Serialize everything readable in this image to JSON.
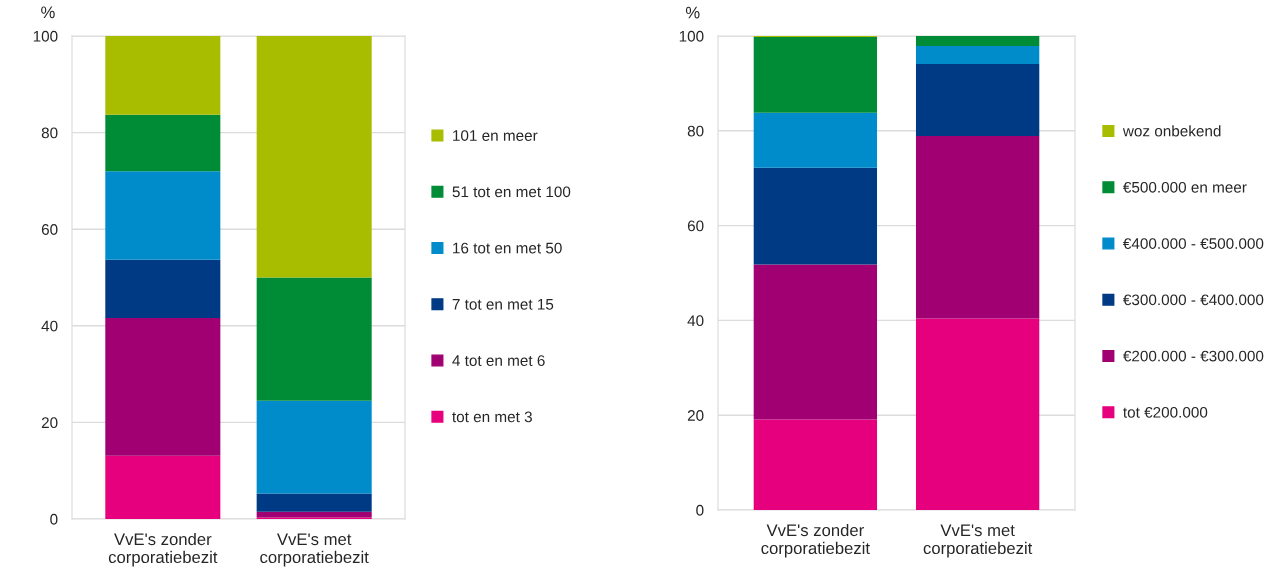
{
  "chart_data": [
    {
      "type": "bar",
      "stacked": true,
      "ylabel": "%",
      "categories": [
        "VvE's zonder corporatiebezit",
        "VvE's met corporatiebezit"
      ],
      "ylim": [
        0,
        100
      ],
      "yticks": [
        0,
        20,
        40,
        60,
        80,
        100
      ],
      "grid": "y",
      "legend": "right",
      "series": [
        {
          "name": "tot en met 3",
          "color": "#e6007e",
          "values": [
            13.1,
            0.3
          ]
        },
        {
          "name": "4 tot en met 6",
          "color": "#a00071",
          "values": [
            28.5,
            1.2
          ]
        },
        {
          "name": "7 tot en met 15",
          "color": "#003a84",
          "values": [
            12.1,
            3.8
          ]
        },
        {
          "name": "16 tot en met 50",
          "color": "#008bcb",
          "values": [
            18.3,
            19.2
          ]
        },
        {
          "name": "51 tot en met 100",
          "color": "#008c36",
          "values": [
            11.7,
            25.5
          ]
        },
        {
          "name": "101 en meer",
          "color": "#a8bc00",
          "values": [
            16.3,
            50.0
          ]
        }
      ]
    },
    {
      "type": "bar",
      "stacked": true,
      "ylabel": "%",
      "categories": [
        "VvE's zonder corporatiebezit",
        "VvE's met corporatiebezit"
      ],
      "ylim": [
        0,
        100
      ],
      "yticks": [
        0,
        20,
        40,
        60,
        80,
        100
      ],
      "grid": "y",
      "legend": "right",
      "series": [
        {
          "name": "tot €200.000",
          "color": "#e6007e",
          "values": [
            19.1,
            40.4
          ]
        },
        {
          "name": "€200.000 - €300.000",
          "color": "#a00071",
          "values": [
            32.7,
            38.5
          ]
        },
        {
          "name": "€300.000 - €400.000",
          "color": "#003a84",
          "values": [
            20.4,
            15.2
          ]
        },
        {
          "name": "€400.000 - €500.000",
          "color": "#008bcb",
          "values": [
            11.6,
            3.8
          ]
        },
        {
          "name": "€500.000 en meer",
          "color": "#008c36",
          "values": [
            16.0,
            2.1
          ]
        },
        {
          "name": "woz onbekend",
          "color": "#a8bc00",
          "values": [
            0.2,
            0
          ]
        }
      ]
    }
  ]
}
